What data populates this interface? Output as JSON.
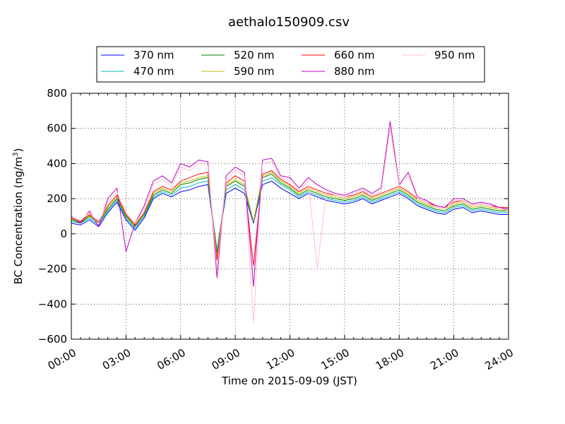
{
  "chart_data": {
    "type": "line",
    "title": "aethalo150909.csv",
    "xlabel": "Time on 2015-09-09 (JST)",
    "ylabel_main": "BC Concentration (ng/m",
    "ylabel_sup": "3",
    "ylabel_tail": ")",
    "xlim_hours": [
      0,
      24
    ],
    "ylim": [
      -600,
      800
    ],
    "grid": true,
    "legend_placement": "top-center",
    "x_tick_labels": [
      "00:00",
      "03:00",
      "06:00",
      "09:00",
      "12:00",
      "15:00",
      "18:00",
      "21:00",
      "24:00"
    ],
    "y_tick_labels": [
      "800",
      "600",
      "400",
      "200",
      "0",
      "−200",
      "−400",
      "−600"
    ],
    "x_hours": [
      0,
      0.5,
      1,
      1.5,
      2,
      2.5,
      3,
      3.5,
      4,
      4.5,
      5,
      5.5,
      6,
      6.5,
      7,
      7.5,
      8,
      8.5,
      9,
      9.5,
      10,
      10.5,
      11,
      11.5,
      12,
      12.5,
      13,
      13.5,
      14,
      14.5,
      15,
      15.5,
      16,
      16.5,
      17,
      17.5,
      18,
      18.5,
      19,
      19.5,
      20,
      20.5,
      21,
      21.5,
      22,
      22.5,
      23,
      23.5,
      24
    ],
    "series": [
      {
        "name": "370 nm",
        "color": "#0000ff",
        "values": [
          60,
          50,
          80,
          40,
          120,
          180,
          80,
          20,
          90,
          200,
          230,
          210,
          240,
          250,
          270,
          280,
          -100,
          230,
          260,
          230,
          60,
          280,
          300,
          260,
          230,
          200,
          230,
          210,
          190,
          180,
          170,
          180,
          200,
          170,
          190,
          210,
          230,
          200,
          160,
          140,
          120,
          110,
          140,
          150,
          120,
          130,
          120,
          110,
          110
        ]
      },
      {
        "name": "470 nm",
        "color": "#00bfbf",
        "values": [
          70,
          60,
          90,
          50,
          130,
          190,
          90,
          30,
          100,
          210,
          240,
          220,
          260,
          270,
          290,
          300,
          -90,
          250,
          280,
          250,
          70,
          300,
          320,
          280,
          250,
          210,
          240,
          220,
          200,
          190,
          180,
          190,
          210,
          180,
          200,
          220,
          240,
          210,
          170,
          150,
          130,
          120,
          150,
          160,
          130,
          140,
          130,
          120,
          120
        ]
      },
      {
        "name": "520 nm",
        "color": "#008000",
        "values": [
          80,
          60,
          100,
          60,
          140,
          200,
          100,
          40,
          110,
          220,
          250,
          230,
          280,
          290,
          310,
          320,
          -120,
          270,
          300,
          270,
          70,
          320,
          340,
          290,
          260,
          220,
          250,
          230,
          210,
          200,
          190,
          200,
          220,
          190,
          210,
          230,
          250,
          220,
          180,
          160,
          140,
          130,
          160,
          170,
          140,
          150,
          140,
          130,
          130
        ]
      },
      {
        "name": "590 nm",
        "color": "#bfbf00",
        "values": [
          85,
          65,
          105,
          65,
          150,
          210,
          105,
          45,
          115,
          230,
          260,
          240,
          290,
          300,
          320,
          330,
          -130,
          280,
          310,
          280,
          70,
          330,
          350,
          300,
          270,
          230,
          260,
          240,
          220,
          210,
          200,
          210,
          230,
          200,
          220,
          240,
          260,
          230,
          190,
          170,
          150,
          140,
          170,
          180,
          150,
          160,
          150,
          140,
          140
        ]
      },
      {
        "name": "660 nm",
        "color": "#ff0000",
        "values": [
          90,
          70,
          110,
          70,
          160,
          220,
          110,
          50,
          120,
          240,
          270,
          250,
          300,
          320,
          340,
          350,
          -150,
          290,
          330,
          300,
          -180,
          340,
          360,
          310,
          280,
          240,
          270,
          250,
          230,
          220,
          210,
          220,
          240,
          210,
          230,
          250,
          270,
          240,
          200,
          180,
          160,
          150,
          180,
          190,
          160,
          170,
          160,
          150,
          150
        ]
      },
      {
        "name": "880 nm",
        "color": "#bf00bf",
        "values": [
          100,
          60,
          130,
          40,
          200,
          260,
          -100,
          60,
          160,
          300,
          330,
          290,
          400,
          380,
          420,
          410,
          -250,
          330,
          380,
          350,
          -300,
          420,
          430,
          330,
          320,
          260,
          320,
          280,
          250,
          230,
          220,
          240,
          260,
          230,
          260,
          640,
          280,
          350,
          210,
          190,
          160,
          150,
          200,
          200,
          170,
          180,
          170,
          150,
          140
        ]
      },
      {
        "name": "950 nm",
        "color": "#ffc0cb",
        "values": [
          95,
          75,
          120,
          60,
          180,
          240,
          120,
          60,
          140,
          280,
          310,
          270,
          380,
          360,
          400,
          390,
          -200,
          310,
          360,
          330,
          -500,
          400,
          410,
          320,
          300,
          250,
          300,
          -200,
          240,
          220,
          210,
          230,
          250,
          220,
          240,
          600,
          270,
          330,
          200,
          180,
          150,
          140,
          190,
          190,
          160,
          170,
          160,
          140,
          130
        ]
      }
    ]
  }
}
